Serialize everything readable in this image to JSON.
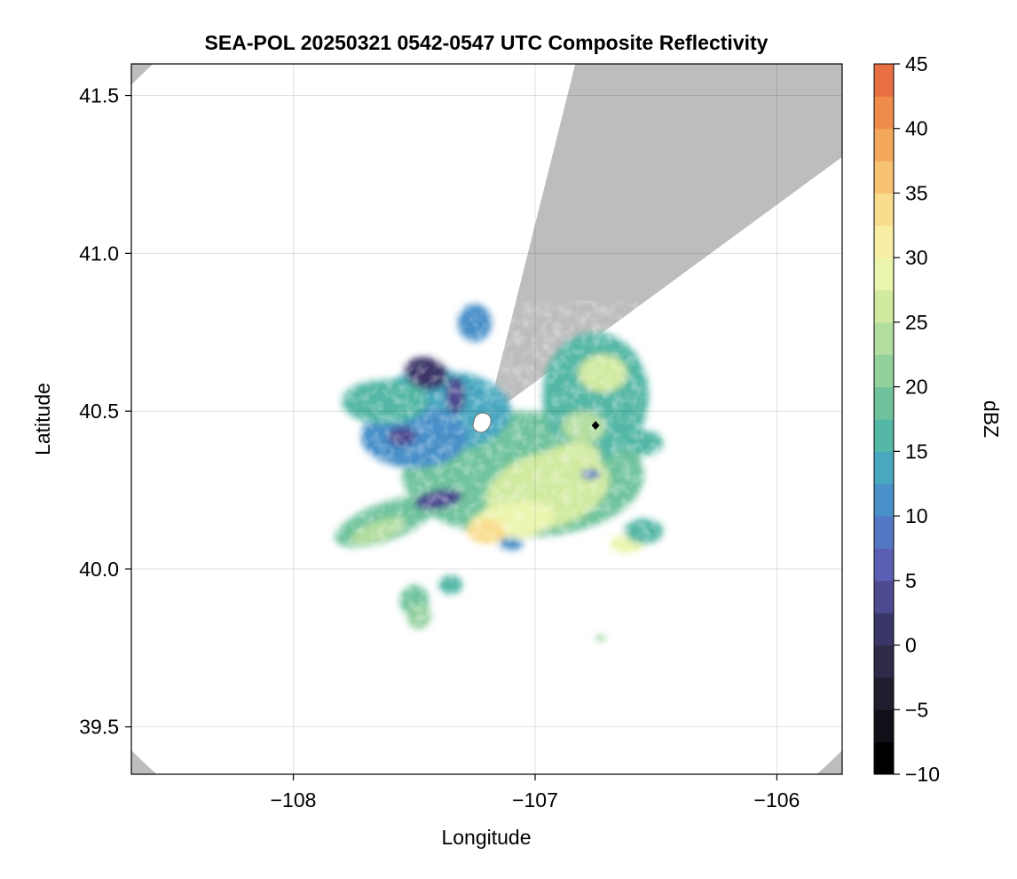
{
  "chart_data": {
    "type": "heatmap",
    "title": "SEA-POL 20250321 0542-0547 UTC Composite Reflectivity",
    "xlabel": "Longitude",
    "ylabel": "Latitude",
    "xlim": [
      -108.67,
      -105.73
    ],
    "ylim": [
      39.35,
      41.6
    ],
    "x_ticks": [
      -108,
      -107,
      -106
    ],
    "x_tick_labels": [
      "−108",
      "−107",
      "−106"
    ],
    "y_ticks": [
      39.5,
      40.0,
      40.5,
      41.0,
      41.5
    ],
    "y_tick_labels": [
      "39.5",
      "40.0",
      "40.5",
      "41.0",
      "41.5"
    ],
    "grid": true,
    "background_color": "#bdbdbd",
    "coverage_color": "#ffffff",
    "radar_site": {
      "lon": -107.2,
      "lat": 40.48
    },
    "radar_range_deg": {
      "lon": 2.04,
      "lat": 1.52
    },
    "beam_blockage_sectors": [
      {
        "from_lon": -106.86,
        "from_lat": 41.52,
        "to_lon": -106.06,
        "to_lat": 41.12
      }
    ],
    "marker": {
      "lon": -106.75,
      "lat": 40.455,
      "shape": "diamond",
      "color": "#000000"
    },
    "colorbar": {
      "label": "dBZ",
      "min": -10,
      "max": 45,
      "step": 2.5,
      "ticks": [
        -10,
        -5,
        0,
        5,
        10,
        15,
        20,
        25,
        30,
        35,
        40,
        45
      ],
      "tick_labels": [
        "−10",
        "−5",
        "0",
        "5",
        "10",
        "15",
        "20",
        "25",
        "30",
        "35",
        "40",
        "45"
      ],
      "colors": [
        "#000000",
        "#111018",
        "#1f1d2e",
        "#2e2a48",
        "#3b3668",
        "#4d4a8f",
        "#5b5fb3",
        "#5477c4",
        "#4a90c9",
        "#49a8c0",
        "#55b7a6",
        "#6fc39c",
        "#92d09c",
        "#b4dea0",
        "#d1eaa0",
        "#ecf5ae",
        "#f8efa5",
        "#f9dd8e",
        "#f7c372",
        "#f4a85c",
        "#ef8c4c",
        "#e86e44",
        "#dc5341",
        "#c83a42",
        "#b12447",
        "#c02660",
        "#d63e82",
        "#e465a4",
        "#e98fc2",
        "#d49cd0",
        "#b484c4",
        "#9567b0",
        "#784c99",
        "#5c307e",
        "#421762",
        "#2d0a47"
      ]
    },
    "echo_regions": [
      {
        "name": "north-cell",
        "lon": -107.25,
        "lat": 40.78,
        "dbz": 12
      },
      {
        "name": "west-stratiform",
        "lon": -107.55,
        "lat": 40.52,
        "dbz": 14
      },
      {
        "name": "weak-band-west",
        "lon": -107.45,
        "lat": 40.6,
        "dbz": 1
      },
      {
        "name": "weak-band-north",
        "lon": -107.38,
        "lat": 40.55,
        "dbz": 3
      },
      {
        "name": "central-core",
        "lon": -107.0,
        "lat": 40.3,
        "dbz": 26
      },
      {
        "name": "south-core",
        "lon": -107.1,
        "lat": 40.15,
        "dbz": 28
      },
      {
        "name": "east-core",
        "lon": -106.7,
        "lat": 40.58,
        "dbz": 26
      },
      {
        "name": "southeast-cell",
        "lon": -106.62,
        "lat": 40.08,
        "dbz": 28
      },
      {
        "name": "western-arm",
        "lon": -107.62,
        "lat": 40.15,
        "dbz": 18
      },
      {
        "name": "blue-patch",
        "lon": -107.45,
        "lat": 40.2,
        "dbz": 4
      },
      {
        "name": "southern-showers",
        "lon": -107.5,
        "lat": 39.9,
        "dbz": 18
      }
    ]
  }
}
